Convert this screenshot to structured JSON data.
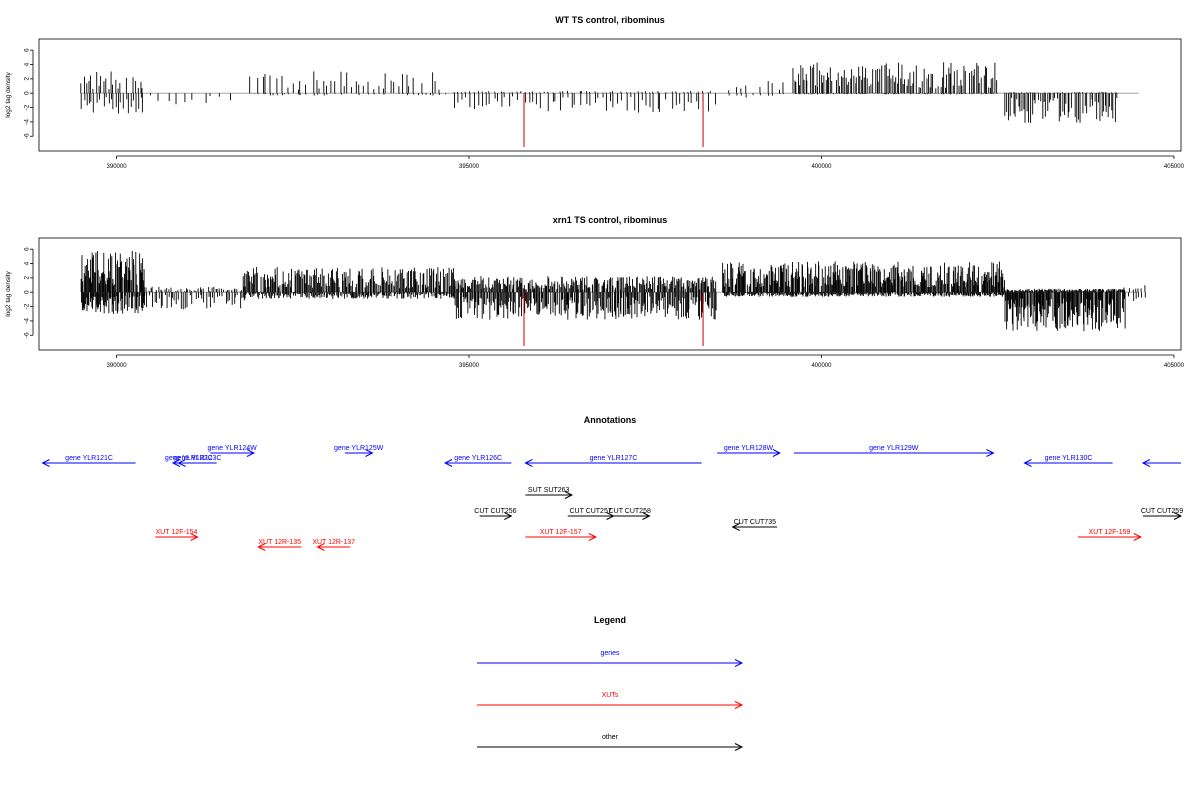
{
  "colors": {
    "gene": "#0000ff",
    "xut": "#ff0000",
    "other": "#000000",
    "peak": "#cc0000",
    "baseline": "#999999",
    "bar": "#000000"
  },
  "chart_data": [
    {
      "type": "bar",
      "title": "WT TS control, ribominus",
      "ylabel": "log2 tag density",
      "xticks": [
        "390000",
        "395000",
        "400000",
        "405000"
      ],
      "yticks": [
        "-6",
        "-4",
        "-2",
        "0",
        "2",
        "4",
        "6"
      ],
      "xlim": [
        388900,
        405100
      ],
      "ylim": [
        -7.5,
        7
      ],
      "highlight_x": [
        395780,
        398320
      ],
      "highlight_y": -7.5,
      "regions": [
        {
          "from": 389500,
          "to": 390400,
          "step": 35,
          "pos": 1.9,
          "neg": 1.8,
          "seed": 11
        },
        {
          "from": 390500,
          "to": 391600,
          "step": 120,
          "pos": 0,
          "neg": 1.0,
          "seed": 12
        },
        {
          "from": 391900,
          "to": 394700,
          "step": 55,
          "pos": 1.9,
          "neg": 0.2,
          "seed": 13
        },
        {
          "from": 394800,
          "to": 398500,
          "step": 55,
          "pos": 0.2,
          "neg": 1.7,
          "seed": 14
        },
        {
          "from": 398700,
          "to": 399500,
          "step": 75,
          "pos": 1.1,
          "neg": 0.4,
          "seed": 15
        },
        {
          "from": 399600,
          "to": 402500,
          "step": 22,
          "pos": 2.7,
          "neg": 0.1,
          "seed": 16
        },
        {
          "from": 402600,
          "to": 404200,
          "step": 24,
          "pos": 0.1,
          "neg": 2.6,
          "seed": 17
        }
      ]
    },
    {
      "type": "bar",
      "title": "xrn1 TS control, ribominus",
      "ylabel": "log2 tag density",
      "xticks": [
        "390000",
        "395000",
        "400000",
        "405000"
      ],
      "yticks": [
        "-6",
        "-4",
        "-2",
        "0",
        "2",
        "4",
        "6"
      ],
      "xlim": [
        388900,
        405100
      ],
      "ylim": [
        -7.5,
        7
      ],
      "highlight_x": [
        395780,
        398320
      ],
      "highlight_y": -7.5,
      "regions": [
        {
          "from": 389500,
          "to": 390400,
          "step": 11,
          "pos": 3.6,
          "neg": 1.9,
          "seed": 21
        },
        {
          "from": 390400,
          "to": 391800,
          "step": 28,
          "pos": 0.5,
          "neg": 1.5,
          "seed": 22
        },
        {
          "from": 391800,
          "to": 394800,
          "step": 14,
          "pos": 2.2,
          "neg": 0.6,
          "seed": 23
        },
        {
          "from": 394800,
          "to": 398500,
          "step": 14,
          "pos": 1.4,
          "neg": 2.4,
          "seed": 24
        },
        {
          "from": 398600,
          "to": 402600,
          "step": 11,
          "pos": 2.7,
          "neg": 0.4,
          "seed": 25
        },
        {
          "from": 402600,
          "to": 404300,
          "step": 10,
          "pos": 0.3,
          "neg": 3.4,
          "seed": 26
        },
        {
          "from": 404300,
          "to": 404600,
          "step": 40,
          "pos": 1.0,
          "neg": 1.0,
          "seed": 27
        }
      ]
    }
  ],
  "annotations": {
    "title": "Annotations",
    "features": [
      {
        "label": "gene YLR121C",
        "from": 388950,
        "to": 390270,
        "row": 1,
        "strand": "-",
        "kind": "gene"
      },
      {
        "label": "gene YLR122C",
        "from": 390800,
        "to": 391250,
        "row": 1,
        "strand": "-",
        "kind": "gene"
      },
      {
        "label": "gene YLR123C",
        "from": 390880,
        "to": 391420,
        "row": 1,
        "strand": "-",
        "kind": "gene"
      },
      {
        "label": "gene YLR124W",
        "from": 391330,
        "to": 391950,
        "row": 0,
        "strand": "+",
        "kind": "gene"
      },
      {
        "label": "gene YLR125W",
        "from": 393240,
        "to": 393630,
        "row": 0,
        "strand": "+",
        "kind": "gene"
      },
      {
        "label": "gene YLR126C",
        "from": 394660,
        "to": 395600,
        "row": 1,
        "strand": "-",
        "kind": "gene"
      },
      {
        "label": "gene YLR127C",
        "from": 395800,
        "to": 398300,
        "row": 1,
        "strand": "-",
        "kind": "gene"
      },
      {
        "label": "gene YLR128W",
        "from": 398520,
        "to": 399410,
        "row": 0,
        "strand": "+",
        "kind": "gene"
      },
      {
        "label": "gene YLR129W",
        "from": 399610,
        "to": 402440,
        "row": 0,
        "strand": "+",
        "kind": "gene"
      },
      {
        "label": "gene YLR130C",
        "from": 402880,
        "to": 404130,
        "row": 1,
        "strand": "-",
        "kind": "gene"
      },
      {
        "label": "",
        "from": 404560,
        "to": 405100,
        "row": 1,
        "strand": "-",
        "kind": "gene"
      },
      {
        "label": "SUT SUT263",
        "from": 395800,
        "to": 396460,
        "row": 2,
        "strand": "+",
        "kind": "other"
      },
      {
        "label": "CUT CUT256",
        "from": 395150,
        "to": 395600,
        "row": 3,
        "strand": "+",
        "kind": "other"
      },
      {
        "label": "CUT CUT257",
        "from": 396400,
        "to": 397050,
        "row": 3,
        "strand": "+",
        "kind": "other"
      },
      {
        "label": "CUT CUT258",
        "from": 397000,
        "to": 397560,
        "row": 3,
        "strand": "+",
        "kind": "other"
      },
      {
        "label": "CUT CUT735",
        "from": 398740,
        "to": 399370,
        "row": 4,
        "strand": "-",
        "kind": "other"
      },
      {
        "label": "CUT CUT259",
        "from": 404560,
        "to": 405100,
        "row": 3,
        "strand": "+",
        "kind": "other"
      },
      {
        "label": "XUT 12F-154",
        "from": 390550,
        "to": 391150,
        "row": 5,
        "strand": "+",
        "kind": "xut"
      },
      {
        "label": "XUT 12R-135",
        "from": 392010,
        "to": 392620,
        "row": 6,
        "strand": "-",
        "kind": "xut"
      },
      {
        "label": "XUT 12R-137",
        "from": 392850,
        "to": 393310,
        "row": 6,
        "strand": "-",
        "kind": "xut"
      },
      {
        "label": "XUT 12F-157",
        "from": 395800,
        "to": 396800,
        "row": 5,
        "strand": "+",
        "kind": "xut"
      },
      {
        "label": "XUT 12F-159",
        "from": 403640,
        "to": 404530,
        "row": 5,
        "strand": "+",
        "kind": "xut"
      }
    ]
  },
  "legend": {
    "title": "Legend",
    "items": [
      {
        "label": "genes",
        "kind": "gene"
      },
      {
        "label": "XUTs",
        "kind": "xut"
      },
      {
        "label": "other",
        "kind": "other"
      }
    ]
  }
}
